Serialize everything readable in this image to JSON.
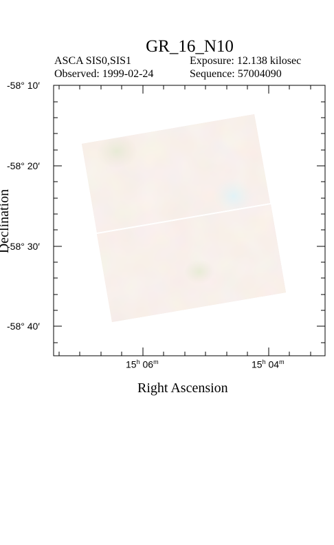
{
  "header": {
    "title": "GR_16_N10",
    "instrument": "ASCA SIS0,SIS1",
    "exposure": "Exposure: 12.138 kilosec",
    "observed": "Observed: 1999-02-24",
    "sequence": "Sequence: 57004090"
  },
  "axes": {
    "xlabel": "Right Ascension",
    "ylabel": "Declination",
    "x_ticks": [
      {
        "h": "15",
        "m": "06"
      },
      {
        "h": "15",
        "m": "04"
      }
    ],
    "y_ticks": [
      "-58° 10′",
      "-58° 20′",
      "-58° 30′",
      "-58° 40′"
    ]
  },
  "colors": {
    "background": "#ffffff",
    "frame": "#000000",
    "image_base": "#eedcd3",
    "gap_line": "#ffffff"
  }
}
